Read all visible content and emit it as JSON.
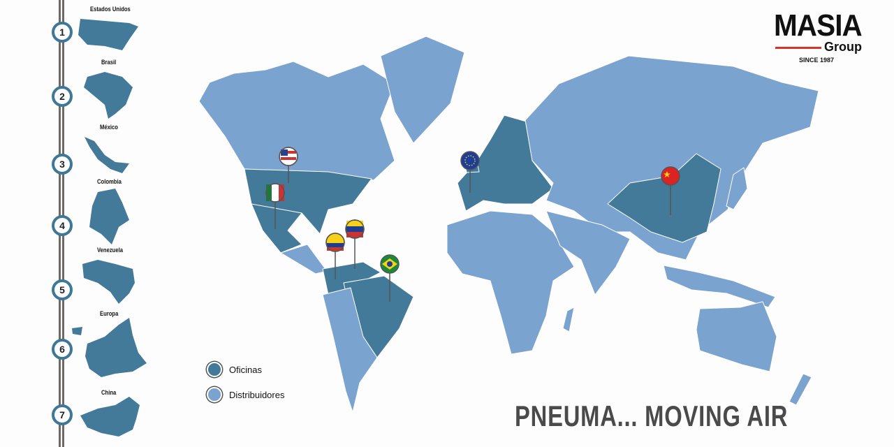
{
  "colors": {
    "offices": "#447a99",
    "distributors": "#7ba3cf",
    "accent": "#d6332a"
  },
  "timeline": [
    {
      "number": "1",
      "label": "Estados Unidos"
    },
    {
      "number": "2",
      "label": "Brasil"
    },
    {
      "number": "3",
      "label": "México"
    },
    {
      "number": "4",
      "label": "Colombia"
    },
    {
      "number": "5",
      "label": "Venezuela"
    },
    {
      "number": "6",
      "label": "Europa"
    },
    {
      "number": "7",
      "label": "China"
    }
  ],
  "logo": {
    "name": "MASIA",
    "sub": "Group",
    "since": "SINCE 1987"
  },
  "legend": {
    "offices": "Oficinas",
    "distributors": "Distribuidores"
  },
  "slogan": "PNEUMA... MOVING AIR",
  "pins": [
    "usa-flag",
    "mexico-flag",
    "colombia-flag",
    "venezuela-flag",
    "brazil-flag",
    "eu-flag",
    "china-flag"
  ]
}
